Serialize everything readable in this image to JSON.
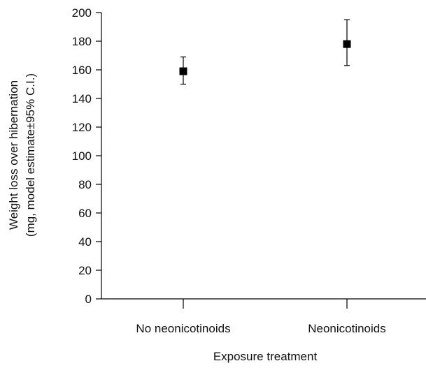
{
  "chart_data": {
    "type": "scatter",
    "title": "",
    "xlabel": "Exposure treatment",
    "ylabel": {
      "line1": "Weight loss over hibernation",
      "line2": "(mg, model estimate±95% C.I.)"
    },
    "categories": [
      "No neonicotinoids",
      "Neonicotinoids"
    ],
    "ylim": [
      0,
      200
    ],
    "yticks": [
      0,
      20,
      40,
      60,
      80,
      100,
      120,
      140,
      160,
      180,
      200
    ],
    "points": [
      {
        "category": "No neonicotinoids",
        "estimate": 159,
        "ci_lower": 150,
        "ci_upper": 169
      },
      {
        "category": "Neonicotinoids",
        "estimate": 178,
        "ci_lower": 163,
        "ci_upper": 195
      }
    ],
    "marker": "square",
    "grid": false,
    "legend": "none",
    "colors": {
      "marker": "#000000",
      "axis": "#000000",
      "text": "#111111"
    }
  }
}
